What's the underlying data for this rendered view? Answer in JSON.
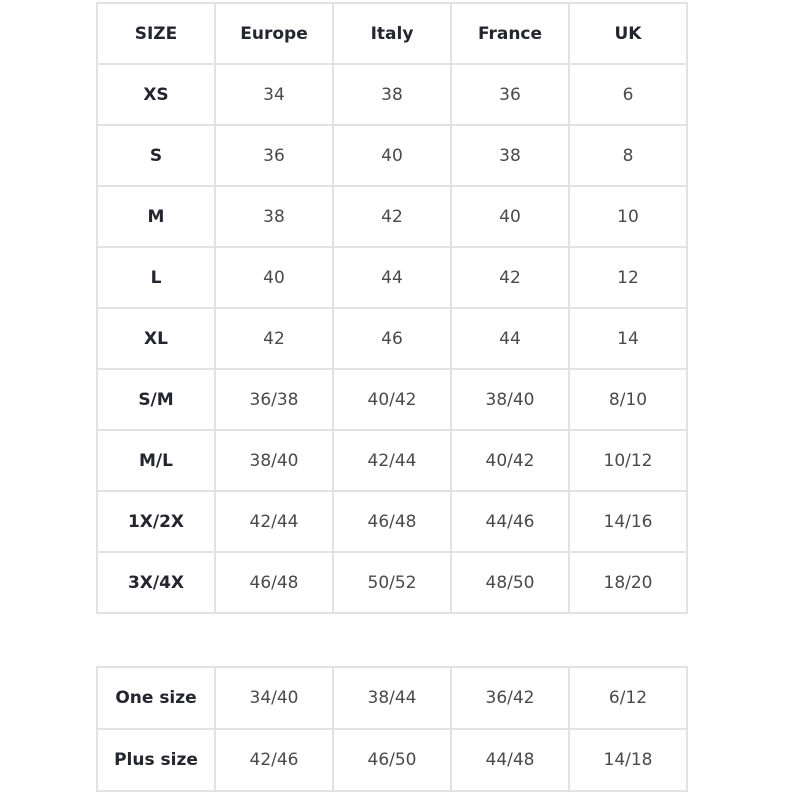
{
  "main_table": {
    "headers": [
      "SIZE",
      "Europe",
      "Italy",
      "France",
      "UK"
    ],
    "rows": [
      [
        "XS",
        "34",
        "38",
        "36",
        "6"
      ],
      [
        "S",
        "36",
        "40",
        "38",
        "8"
      ],
      [
        "M",
        "38",
        "42",
        "40",
        "10"
      ],
      [
        "L",
        "40",
        "44",
        "42",
        "12"
      ],
      [
        "XL",
        "42",
        "46",
        "44",
        "14"
      ],
      [
        "S/M",
        "36/38",
        "40/42",
        "38/40",
        "8/10"
      ],
      [
        "M/L",
        "38/40",
        "42/44",
        "40/42",
        "10/12"
      ],
      [
        "1X/2X",
        "42/44",
        "46/48",
        "44/46",
        "14/16"
      ],
      [
        "3X/4X",
        "46/48",
        "50/52",
        "48/50",
        "18/20"
      ]
    ]
  },
  "extra_table": {
    "rows": [
      [
        "One size",
        "34/40",
        "38/44",
        "36/42",
        "6/12"
      ],
      [
        "Plus size",
        "42/46",
        "46/50",
        "44/48",
        "14/18"
      ]
    ]
  },
  "colors": {
    "border": "#e2e2e2",
    "header_text": "#25252f",
    "cell_text": "#4a4a4a"
  }
}
